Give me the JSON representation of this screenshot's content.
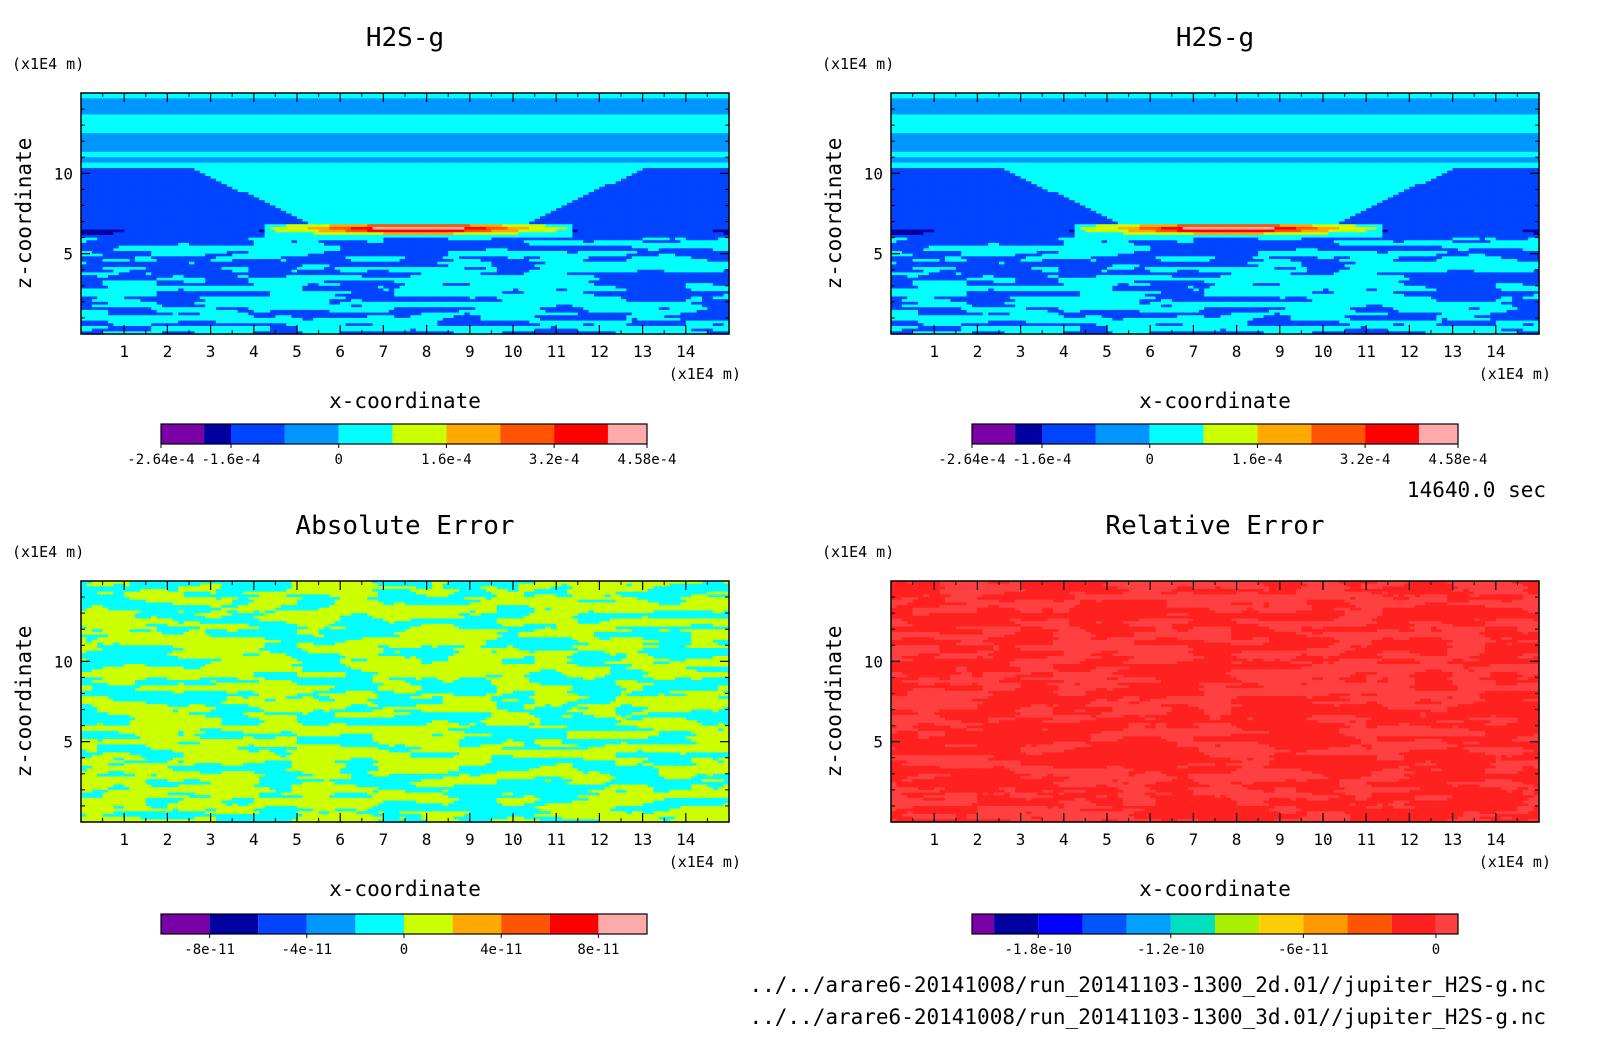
{
  "figure": {
    "time_label": "14640.0 sec",
    "files": [
      "../../arare6-20141008/run_20141103-1300_2d.01//jupiter_H2S-g.nc",
      "../../arare6-20141008/run_20141103-1300_3d.01//jupiter_H2S-g.nc"
    ]
  },
  "chart_data": [
    {
      "type": "heatmap",
      "title": "H2S-g",
      "xlabel": "x-coordinate",
      "ylabel": "z-coordinate",
      "x_unit": "(x1E4 m)",
      "y_unit": "(x1E4 m)",
      "xlim": [
        0,
        15
      ],
      "ylim": [
        0,
        15
      ],
      "x_ticks": [
        1,
        2,
        3,
        4,
        5,
        6,
        7,
        8,
        9,
        10,
        11,
        12,
        13,
        14
      ],
      "y_ticks": [
        5,
        10
      ],
      "field": "h2s",
      "levels": [
        -0.000264,
        -0.0002,
        -0.00016,
        -8e-05,
        0,
        8e-05,
        0.00016,
        0.00024,
        0.00032,
        0.0004,
        0.000458
      ],
      "colors": [
        "#7a00a8",
        "#0000a0",
        "#0044ff",
        "#0096ff",
        "#00ffff",
        "#ccff00",
        "#ffaa00",
        "#ff5500",
        "#ff0000",
        "#ffaaaa"
      ],
      "colorbar_labels": [
        "-2.64e-4",
        "-1.6e-4",
        "0",
        "1.6e-4",
        "3.2e-4",
        "4.58e-4"
      ]
    },
    {
      "type": "heatmap",
      "title": "H2S-g",
      "xlabel": "x-coordinate",
      "ylabel": "z-coordinate",
      "x_unit": "(x1E4 m)",
      "y_unit": "(x1E4 m)",
      "xlim": [
        0,
        15
      ],
      "ylim": [
        0,
        15
      ],
      "x_ticks": [
        1,
        2,
        3,
        4,
        5,
        6,
        7,
        8,
        9,
        10,
        11,
        12,
        13,
        14
      ],
      "y_ticks": [
        5,
        10
      ],
      "field": "h2s",
      "levels": [
        -0.000264,
        -0.0002,
        -0.00016,
        -8e-05,
        0,
        8e-05,
        0.00016,
        0.00024,
        0.00032,
        0.0004,
        0.000458
      ],
      "colors": [
        "#7a00a8",
        "#0000a0",
        "#0044ff",
        "#0096ff",
        "#00ffff",
        "#ccff00",
        "#ffaa00",
        "#ff5500",
        "#ff0000",
        "#ffaaaa"
      ],
      "colorbar_labels": [
        "-2.64e-4",
        "-1.6e-4",
        "0",
        "1.6e-4",
        "3.2e-4",
        "4.58e-4"
      ]
    },
    {
      "type": "heatmap",
      "title": "Absolute Error",
      "xlabel": "x-coordinate",
      "ylabel": "z-coordinate",
      "x_unit": "(x1E4 m)",
      "y_unit": "(x1E4 m)",
      "xlim": [
        0,
        15
      ],
      "ylim": [
        0,
        15
      ],
      "x_ticks": [
        1,
        2,
        3,
        4,
        5,
        6,
        7,
        8,
        9,
        10,
        11,
        12,
        13,
        14
      ],
      "y_ticks": [
        5,
        10
      ],
      "field": "abs_error",
      "levels": [
        -1e-10,
        -8e-11,
        -6e-11,
        -4e-11,
        -2e-11,
        0,
        2e-11,
        4e-11,
        6e-11,
        8e-11,
        1e-10
      ],
      "colors": [
        "#7a00a8",
        "#0000a0",
        "#0044ff",
        "#0096ff",
        "#00ffff",
        "#ccff00",
        "#ffaa00",
        "#ff5500",
        "#ff0000",
        "#ffaaaa"
      ],
      "colorbar_labels": [
        "-8e-11",
        "-4e-11",
        "0",
        "4e-11",
        "8e-11"
      ]
    },
    {
      "type": "heatmap",
      "title": "Relative Error",
      "xlabel": "x-coordinate",
      "ylabel": "z-coordinate",
      "x_unit": "(x1E4 m)",
      "y_unit": "(x1E4 m)",
      "xlim": [
        0,
        15
      ],
      "ylim": [
        0,
        15
      ],
      "x_ticks": [
        1,
        2,
        3,
        4,
        5,
        6,
        7,
        8,
        9,
        10,
        11,
        12,
        13,
        14
      ],
      "y_ticks": [
        5,
        10
      ],
      "field": "rel_error",
      "levels": [
        -2.1e-10,
        -2e-10,
        -1.8e-10,
        -1.6e-10,
        -1.4e-10,
        -1.2e-10,
        -1e-10,
        -8e-11,
        -6e-11,
        -4e-11,
        -2e-11,
        0,
        1e-11
      ],
      "colors": [
        "#7a00a8",
        "#0000a0",
        "#0000ff",
        "#0055ff",
        "#00a0ff",
        "#00e0c0",
        "#aaee00",
        "#ffcc00",
        "#ff9900",
        "#ff5500",
        "#ff2020",
        "#ff4040",
        "#ffaaaa"
      ],
      "colorbar_labels": [
        "-1.8e-10",
        "-1.2e-10",
        "-6e-11",
        "0"
      ]
    }
  ]
}
